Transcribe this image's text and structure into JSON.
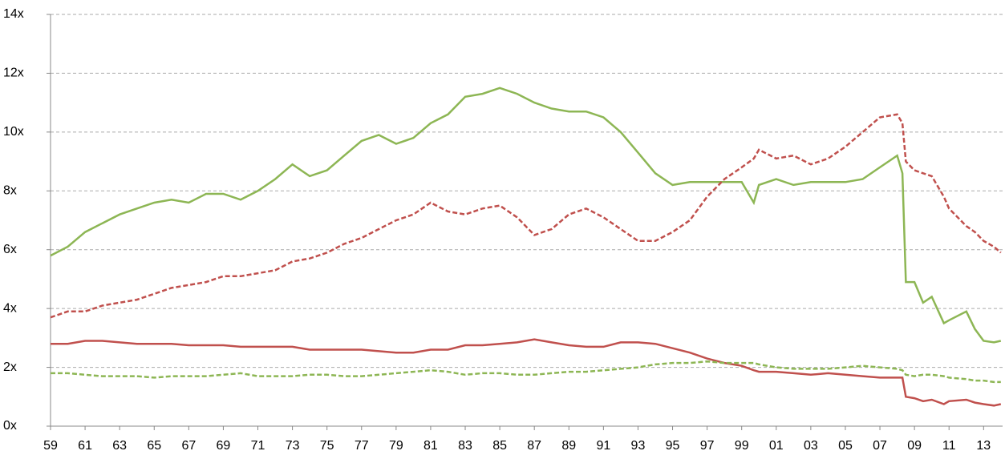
{
  "chart_data": {
    "type": "line",
    "x": [
      1959,
      1960,
      1961,
      1962,
      1963,
      1964,
      1965,
      1966,
      1967,
      1968,
      1969,
      1970,
      1971,
      1972,
      1973,
      1974,
      1975,
      1976,
      1977,
      1978,
      1979,
      1980,
      1981,
      1982,
      1983,
      1984,
      1985,
      1986,
      1987,
      1988,
      1989,
      1990,
      1991,
      1992,
      1993,
      1994,
      1995,
      1996,
      1997,
      1998,
      1999,
      1999.7,
      2000,
      2001,
      2002,
      2003,
      2004,
      2005,
      2006,
      2007,
      2008,
      2008.3,
      2008.5,
      2009,
      2009.5,
      2010,
      2010.7,
      2011,
      2012,
      2012.5,
      2013,
      2013.6,
      2014
    ],
    "series": [
      {
        "color": "#8db654",
        "dash": false,
        "values": [
          5.8,
          6.1,
          6.6,
          6.9,
          7.2,
          7.4,
          7.6,
          7.7,
          7.6,
          7.9,
          7.9,
          7.7,
          8.0,
          8.4,
          8.9,
          8.5,
          8.7,
          9.2,
          9.7,
          9.9,
          9.6,
          9.8,
          10.3,
          10.6,
          11.2,
          11.3,
          11.5,
          11.3,
          11.0,
          10.8,
          10.7,
          10.7,
          10.5,
          10.0,
          9.3,
          8.6,
          8.2,
          8.3,
          8.3,
          8.3,
          8.3,
          7.6,
          8.2,
          8.4,
          8.2,
          8.3,
          8.3,
          8.3,
          8.4,
          8.8,
          9.2,
          8.6,
          4.9,
          4.9,
          4.2,
          4.4,
          3.5,
          3.6,
          3.9,
          3.3,
          2.9,
          2.85,
          2.9
        ]
      },
      {
        "color": "#c0504d",
        "dash": true,
        "values": [
          3.7,
          3.9,
          3.9,
          4.1,
          4.2,
          4.3,
          4.5,
          4.7,
          4.8,
          4.9,
          5.1,
          5.1,
          5.2,
          5.3,
          5.6,
          5.7,
          5.9,
          6.2,
          6.4,
          6.7,
          7.0,
          7.2,
          7.6,
          7.3,
          7.2,
          7.4,
          7.5,
          7.1,
          6.5,
          6.7,
          7.2,
          7.4,
          7.1,
          6.7,
          6.3,
          6.3,
          6.6,
          7.0,
          7.8,
          8.4,
          8.8,
          9.1,
          9.4,
          9.1,
          9.2,
          8.9,
          9.1,
          9.5,
          10.0,
          10.5,
          10.6,
          10.3,
          9.0,
          8.7,
          8.6,
          8.5,
          7.8,
          7.4,
          6.8,
          6.6,
          6.3,
          6.1,
          5.9
        ]
      },
      {
        "color": "#c0504d",
        "dash": false,
        "values": [
          2.8,
          2.8,
          2.9,
          2.9,
          2.85,
          2.8,
          2.8,
          2.8,
          2.75,
          2.75,
          2.75,
          2.7,
          2.7,
          2.7,
          2.7,
          2.6,
          2.6,
          2.6,
          2.6,
          2.55,
          2.5,
          2.5,
          2.6,
          2.6,
          2.75,
          2.75,
          2.8,
          2.85,
          2.95,
          2.85,
          2.75,
          2.7,
          2.7,
          2.85,
          2.85,
          2.8,
          2.65,
          2.5,
          2.3,
          2.15,
          2.05,
          1.9,
          1.85,
          1.85,
          1.8,
          1.75,
          1.8,
          1.75,
          1.7,
          1.65,
          1.65,
          1.65,
          1.0,
          0.95,
          0.85,
          0.9,
          0.75,
          0.85,
          0.9,
          0.8,
          0.75,
          0.7,
          0.75
        ]
      },
      {
        "color": "#8db654",
        "dash": true,
        "values": [
          1.8,
          1.8,
          1.75,
          1.7,
          1.7,
          1.7,
          1.65,
          1.7,
          1.7,
          1.7,
          1.75,
          1.8,
          1.7,
          1.7,
          1.7,
          1.75,
          1.75,
          1.7,
          1.7,
          1.75,
          1.8,
          1.85,
          1.9,
          1.85,
          1.75,
          1.8,
          1.8,
          1.75,
          1.75,
          1.8,
          1.85,
          1.85,
          1.9,
          1.95,
          2.0,
          2.1,
          2.15,
          2.15,
          2.2,
          2.15,
          2.15,
          2.15,
          2.1,
          2.0,
          1.95,
          1.95,
          1.95,
          2.0,
          2.05,
          2.0,
          1.95,
          1.9,
          1.75,
          1.7,
          1.75,
          1.75,
          1.7,
          1.65,
          1.6,
          1.55,
          1.55,
          1.5,
          1.5
        ]
      }
    ],
    "xlim": [
      1959,
      2014.1
    ],
    "xticks": [
      {
        "value": 1959,
        "label": "59"
      },
      {
        "value": 1961,
        "label": "61"
      },
      {
        "value": 1963,
        "label": "63"
      },
      {
        "value": 1965,
        "label": "65"
      },
      {
        "value": 1967,
        "label": "67"
      },
      {
        "value": 1969,
        "label": "69"
      },
      {
        "value": 1971,
        "label": "71"
      },
      {
        "value": 1973,
        "label": "73"
      },
      {
        "value": 1975,
        "label": "75"
      },
      {
        "value": 1977,
        "label": "77"
      },
      {
        "value": 1979,
        "label": "79"
      },
      {
        "value": 1981,
        "label": "81"
      },
      {
        "value": 1983,
        "label": "83"
      },
      {
        "value": 1985,
        "label": "85"
      },
      {
        "value": 1987,
        "label": "87"
      },
      {
        "value": 1989,
        "label": "89"
      },
      {
        "value": 1991,
        "label": "91"
      },
      {
        "value": 1993,
        "label": "93"
      },
      {
        "value": 1995,
        "label": "95"
      },
      {
        "value": 1997,
        "label": "97"
      },
      {
        "value": 1999,
        "label": "99"
      },
      {
        "value": 2001,
        "label": "01"
      },
      {
        "value": 2003,
        "label": "03"
      },
      {
        "value": 2005,
        "label": "05"
      },
      {
        "value": 2007,
        "label": "07"
      },
      {
        "value": 2009,
        "label": "09"
      },
      {
        "value": 2011,
        "label": "11"
      },
      {
        "value": 2013,
        "label": "13"
      }
    ],
    "ylim": [
      0,
      14
    ],
    "yticks": [
      {
        "value": 0,
        "label": "0x"
      },
      {
        "value": 2,
        "label": "2x"
      },
      {
        "value": 4,
        "label": "4x"
      },
      {
        "value": 6,
        "label": "6x"
      },
      {
        "value": 8,
        "label": "8x"
      },
      {
        "value": 10,
        "label": "10x"
      },
      {
        "value": 12,
        "label": "12x"
      },
      {
        "value": 14,
        "label": "14x"
      }
    ],
    "grid": true
  }
}
